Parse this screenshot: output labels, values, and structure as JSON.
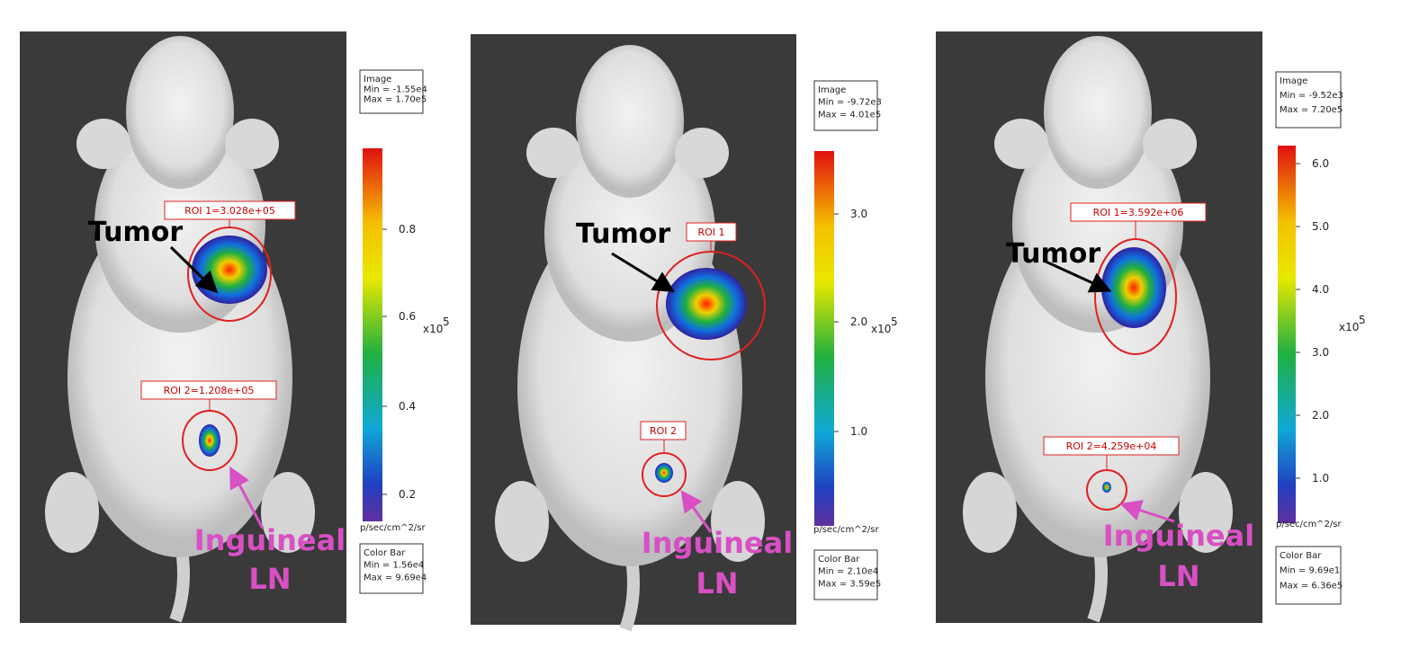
{
  "panels": [
    {
      "image_box": {
        "title": "Image",
        "min": "Min = -1.55e4",
        "max": "Max = 1.70e5"
      },
      "colorbar": {
        "ticks": [
          "0.8",
          "0.6",
          "0.4",
          "0.2"
        ],
        "multiplier": "x10",
        "exponent": "5",
        "unit": "p/sec/cm^2/sr"
      },
      "color_bar_box": {
        "title": "Color Bar",
        "min": "Min = 1.56e4",
        "max": "Max = 9.69e4"
      },
      "rois": [
        "ROI 1=3.028e+05",
        "ROI 2=1.208e+05"
      ],
      "tumor_label": "Tumor",
      "ln_label": [
        "Inguineal",
        "LN"
      ]
    },
    {
      "image_box": {
        "title": "Image",
        "min": "Min = -9.72e3",
        "max": "Max = 4.01e5"
      },
      "colorbar": {
        "ticks": [
          "3.0",
          "2.0",
          "1.0"
        ],
        "multiplier": "x10",
        "exponent": "5",
        "unit": "p/sec/cm^2/sr"
      },
      "color_bar_box": {
        "title": "Color Bar",
        "min": "Min = 2.10e4",
        "max": "Max = 3.59e5"
      },
      "rois": [
        "ROI 1",
        "ROI 2"
      ],
      "tumor_label": "Tumor",
      "ln_label": [
        "Inguineal",
        "LN"
      ]
    },
    {
      "image_box": {
        "title": "Image",
        "min": "Min = -9.52e3",
        "max": "Max = 7.20e5"
      },
      "colorbar": {
        "ticks": [
          "6.0",
          "5.0",
          "4.0",
          "3.0",
          "2.0",
          "1.0"
        ],
        "multiplier": "x10",
        "exponent": "5",
        "unit": "p/sec/cm^2/sr"
      },
      "color_bar_box": {
        "title": "Color Bar",
        "min": "Min = 9.69e1",
        "max": "Max = 6.36e5"
      },
      "rois": [
        "ROI 1=3.592e+06",
        "ROI 2=4.259e+04"
      ],
      "tumor_label": "Tumor",
      "ln_label": [
        "Inguineal",
        "LN"
      ]
    }
  ]
}
